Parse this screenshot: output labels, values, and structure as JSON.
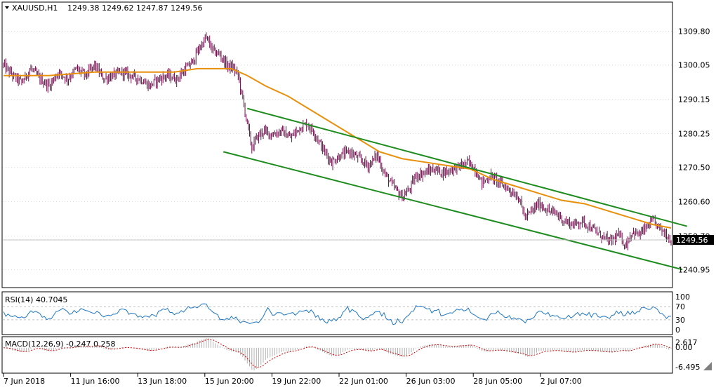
{
  "header": {
    "symbol": "XAUUSD,H1",
    "ohlc": "1249.38 1249.62 1247.87 1249.56"
  },
  "price_axis": {
    "ticks": [
      "1309.80",
      "1300.05",
      "1290.15",
      "1280.25",
      "1270.50",
      "1260.60",
      "1250.70",
      "1240.95"
    ],
    "current": "1249.56"
  },
  "rsi_panel": {
    "label": "RSI(14) 40.7045",
    "ticks": [
      "100",
      "70",
      "30",
      "0"
    ]
  },
  "macd_panel": {
    "label": "MACD(12,26,9) -0.247 0.258",
    "ticks": [
      "2.617",
      "0.00",
      "-6.495"
    ]
  },
  "time_axis": {
    "labels": [
      "7 Jun 2018",
      "11 Jun 16:00",
      "13 Jun 18:00",
      "15 Jun 20:00",
      "19 Jun 22:00",
      "22 Jun 01:00",
      "26 Jun 03:00",
      "28 Jun 05:00",
      "2 Jul 07:00"
    ]
  },
  "colors": {
    "candle": "#6b0f4b",
    "ma": "#e8900c",
    "channel": "#1e8c1e",
    "rsi": "#1f77c4",
    "macd_hist": "#b0b0b0",
    "macd_signal": "#cc0000",
    "grid": "#d9d9d9"
  },
  "chart_data": [
    {
      "type": "candlestick",
      "symbol": "XAUUSD",
      "timeframe": "H1",
      "ylim": [
        1236,
        1318
      ],
      "x_labels": [
        "7 Jun 2018",
        "11 Jun 16:00",
        "13 Jun 18:00",
        "15 Jun 20:00",
        "19 Jun 22:00",
        "22 Jun 01:00",
        "26 Jun 03:00",
        "28 Jun 05:00",
        "2 Jul 07:00"
      ],
      "close_path": [
        [
          0,
          1300
        ],
        [
          8,
          1297
        ],
        [
          16,
          1295
        ],
        [
          24,
          1299
        ],
        [
          32,
          1296
        ],
        [
          40,
          1294
        ],
        [
          48,
          1298
        ],
        [
          56,
          1296
        ],
        [
          64,
          1299
        ],
        [
          72,
          1297
        ],
        [
          80,
          1300
        ],
        [
          88,
          1296
        ],
        [
          96,
          1297
        ],
        [
          104,
          1298
        ],
        [
          112,
          1297
        ],
        [
          120,
          1296
        ],
        [
          128,
          1294
        ],
        [
          136,
          1296
        ],
        [
          144,
          1297
        ],
        [
          152,
          1296
        ],
        [
          160,
          1299
        ],
        [
          166,
          1301
        ],
        [
          172,
          1305
        ],
        [
          178,
          1308
        ],
        [
          184,
          1304
        ],
        [
          190,
          1303
        ],
        [
          196,
          1300
        ],
        [
          202,
          1299
        ],
        [
          206,
          1297
        ],
        [
          210,
          1290
        ],
        [
          214,
          1283
        ],
        [
          218,
          1276
        ],
        [
          222,
          1279
        ],
        [
          228,
          1281
        ],
        [
          236,
          1280
        ],
        [
          244,
          1281
        ],
        [
          252,
          1279
        ],
        [
          260,
          1282
        ],
        [
          266,
          1283
        ],
        [
          272,
          1281
        ],
        [
          280,
          1276
        ],
        [
          288,
          1272
        ],
        [
          296,
          1274
        ],
        [
          304,
          1275
        ],
        [
          312,
          1273
        ],
        [
          320,
          1271
        ],
        [
          328,
          1274
        ],
        [
          334,
          1269
        ],
        [
          342,
          1265
        ],
        [
          350,
          1262
        ],
        [
          356,
          1264
        ],
        [
          362,
          1268
        ],
        [
          370,
          1269
        ],
        [
          378,
          1270
        ],
        [
          386,
          1269
        ],
        [
          394,
          1270
        ],
        [
          402,
          1271
        ],
        [
          408,
          1272
        ],
        [
          414,
          1270
        ],
        [
          420,
          1266
        ],
        [
          428,
          1268
        ],
        [
          436,
          1266
        ],
        [
          444,
          1264
        ],
        [
          452,
          1262
        ],
        [
          458,
          1256
        ],
        [
          464,
          1258
        ],
        [
          470,
          1260
        ],
        [
          478,
          1258
        ],
        [
          486,
          1257
        ],
        [
          492,
          1255
        ],
        [
          500,
          1254
        ],
        [
          508,
          1255
        ],
        [
          516,
          1253
        ],
        [
          524,
          1251
        ],
        [
          532,
          1249
        ],
        [
          540,
          1251
        ],
        [
          546,
          1248
        ],
        [
          552,
          1252
        ],
        [
          558,
          1251
        ],
        [
          564,
          1253
        ],
        [
          570,
          1255
        ],
        [
          576,
          1253
        ],
        [
          582,
          1251
        ],
        [
          586,
          1249.56
        ]
      ],
      "moving_average": [
        [
          0,
          1297
        ],
        [
          40,
          1297
        ],
        [
          80,
          1298
        ],
        [
          120,
          1298
        ],
        [
          150,
          1298
        ],
        [
          170,
          1299
        ],
        [
          200,
          1299
        ],
        [
          214,
          1297
        ],
        [
          230,
          1294
        ],
        [
          250,
          1291
        ],
        [
          270,
          1287
        ],
        [
          290,
          1283
        ],
        [
          310,
          1279
        ],
        [
          330,
          1275
        ],
        [
          350,
          1273
        ],
        [
          370,
          1272
        ],
        [
          390,
          1271
        ],
        [
          410,
          1270
        ],
        [
          430,
          1267
        ],
        [
          450,
          1265
        ],
        [
          470,
          1263
        ],
        [
          490,
          1261
        ],
        [
          510,
          1260
        ],
        [
          530,
          1258
        ],
        [
          550,
          1256
        ],
        [
          570,
          1254
        ],
        [
          586,
          1253
        ]
      ],
      "channel_upper": [
        [
          214,
          1287.5
        ],
        [
          600,
          1253.5
        ]
      ],
      "channel_lower": [
        [
          193,
          1275
        ],
        [
          596,
          1241
        ]
      ]
    },
    {
      "type": "line",
      "name": "RSI(14)",
      "last_value": 40.7045,
      "ylim": [
        0,
        100
      ],
      "levels": [
        70,
        30
      ]
    },
    {
      "type": "bar",
      "name": "MACD(12,26,9)",
      "main": -0.247,
      "signal": 0.258,
      "ylim": [
        -6.495,
        2.617
      ]
    }
  ]
}
